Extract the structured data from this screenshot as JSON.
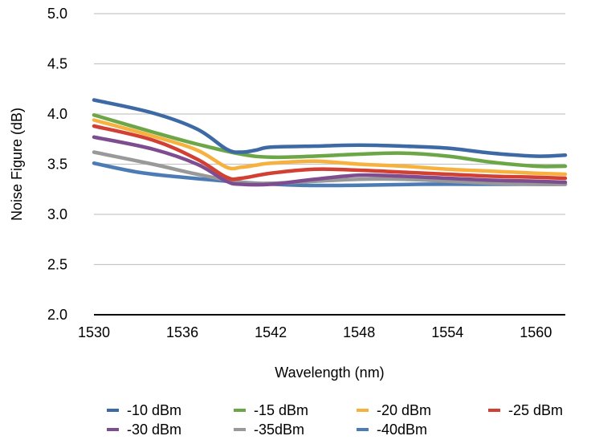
{
  "chart_data": {
    "type": "line",
    "title": "",
    "xlabel": "Wavelength (nm)",
    "ylabel": "Noise Figure (dB)",
    "xlim": [
      1530,
      1562
    ],
    "ylim": [
      2.0,
      5.0
    ],
    "x_ticks": [
      "1530",
      "1536",
      "1542",
      "1548",
      "1554",
      "1560"
    ],
    "x_tick_values": [
      1530,
      1536,
      1542,
      1548,
      1554,
      1560
    ],
    "y_ticks": [
      "2.0",
      "2.5",
      "3.0",
      "3.5",
      "4.0",
      "4.5",
      "5.0"
    ],
    "y_tick_values": [
      2.0,
      2.5,
      3.0,
      3.5,
      4.0,
      4.5,
      5.0
    ],
    "grid": true,
    "legend_position": "bottom",
    "series": [
      {
        "name": "-10 dBm",
        "color": "#3d6aa4",
        "x": [
          1530,
          1534,
          1537,
          1539,
          1540,
          1541,
          1542,
          1545,
          1548,
          1551,
          1554,
          1557,
          1560,
          1562
        ],
        "y": [
          4.14,
          4.01,
          3.85,
          3.65,
          3.62,
          3.64,
          3.67,
          3.68,
          3.69,
          3.68,
          3.66,
          3.61,
          3.58,
          3.59
        ]
      },
      {
        "name": "-15 dBm",
        "color": "#6ca647",
        "x": [
          1530,
          1534,
          1537,
          1540,
          1542,
          1545,
          1548,
          1551,
          1554,
          1557,
          1560,
          1562
        ],
        "y": [
          3.99,
          3.82,
          3.7,
          3.6,
          3.57,
          3.58,
          3.6,
          3.61,
          3.58,
          3.52,
          3.48,
          3.48
        ]
      },
      {
        "name": "-20 dBm",
        "color": "#f7b13e",
        "x": [
          1530,
          1534,
          1537,
          1539,
          1540,
          1541,
          1542,
          1545,
          1548,
          1551,
          1554,
          1557,
          1560,
          1562
        ],
        "y": [
          3.94,
          3.78,
          3.64,
          3.47,
          3.47,
          3.49,
          3.51,
          3.53,
          3.5,
          3.48,
          3.45,
          3.43,
          3.41,
          3.4
        ]
      },
      {
        "name": "-25 dBm",
        "color": "#d23f33",
        "x": [
          1530,
          1534,
          1537,
          1539,
          1540,
          1542,
          1545,
          1548,
          1551,
          1554,
          1557,
          1560,
          1562
        ],
        "y": [
          3.88,
          3.74,
          3.55,
          3.37,
          3.36,
          3.41,
          3.45,
          3.44,
          3.42,
          3.4,
          3.38,
          3.37,
          3.36
        ]
      },
      {
        "name": "-30 dBm",
        "color": "#7e4d90",
        "x": [
          1530,
          1534,
          1537,
          1539,
          1540,
          1542,
          1545,
          1548,
          1551,
          1554,
          1557,
          1560,
          1562
        ],
        "y": [
          3.77,
          3.65,
          3.5,
          3.33,
          3.3,
          3.3,
          3.35,
          3.39,
          3.38,
          3.36,
          3.34,
          3.33,
          3.32
        ]
      },
      {
        "name": "-35dBm",
        "color": "#999999",
        "x": [
          1530,
          1534,
          1537,
          1540,
          1542,
          1545,
          1548,
          1551,
          1554,
          1557,
          1560,
          1562
        ],
        "y": [
          3.62,
          3.5,
          3.4,
          3.32,
          3.31,
          3.33,
          3.35,
          3.35,
          3.33,
          3.31,
          3.3,
          3.3
        ]
      },
      {
        "name": "-40dBm",
        "color": "#4d7cb5",
        "x": [
          1530,
          1533,
          1536,
          1540,
          1544,
          1548,
          1552,
          1556,
          1560,
          1562
        ],
        "y": [
          3.51,
          3.42,
          3.37,
          3.32,
          3.29,
          3.29,
          3.3,
          3.3,
          3.3,
          3.3
        ]
      }
    ]
  }
}
